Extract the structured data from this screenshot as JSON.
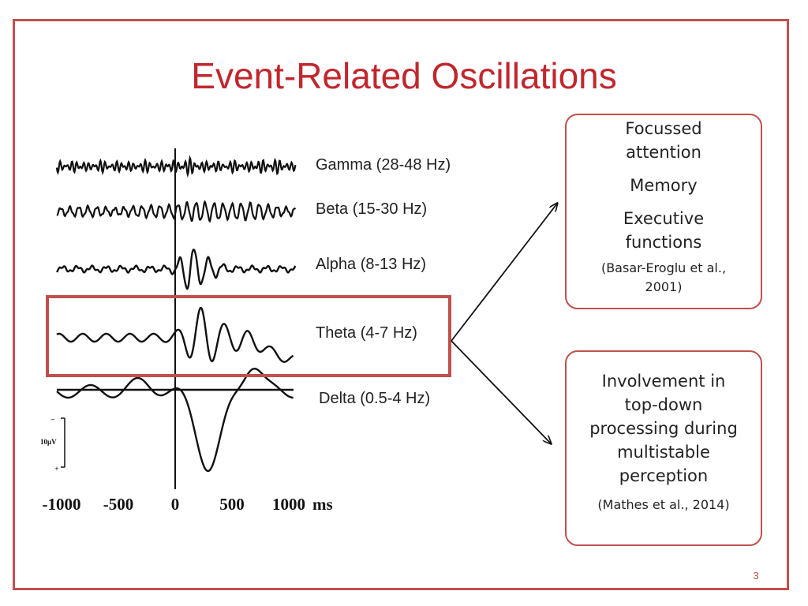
{
  "slide": {
    "title": "Event-Related Oscillations",
    "page_number": "3"
  },
  "bands": [
    {
      "label": "Gamma (28-48 Hz)"
    },
    {
      "label": "Beta (15-30 Hz)"
    },
    {
      "label": "Alpha (8-13 Hz)"
    },
    {
      "label": "Theta (4-7 Hz)"
    },
    {
      "label": "Delta (0.5-4 Hz)"
    }
  ],
  "highlighted_band": "Theta (4-7 Hz)",
  "axis": {
    "ticks": [
      "-1000",
      "-500",
      "0",
      "500",
      "1000"
    ],
    "unit": "ms",
    "scale_label": "10μV",
    "scale_minus": "–",
    "scale_plus": "+"
  },
  "box_top": {
    "lines": [
      "Focussed",
      "attention",
      "Memory",
      "Executive",
      "functions"
    ],
    "citation_line1": "(Basar-Eroglu et al.,",
    "citation_line2": "2001)"
  },
  "box_bottom": {
    "lines": [
      "Involvement in",
      "top-down",
      "processing during",
      "multistable",
      "perception"
    ],
    "citation": "(Mathes et al., 2014)"
  },
  "colors": {
    "title": "#c0272d",
    "frame": "#c0504d",
    "highlight": "#c0504d"
  }
}
